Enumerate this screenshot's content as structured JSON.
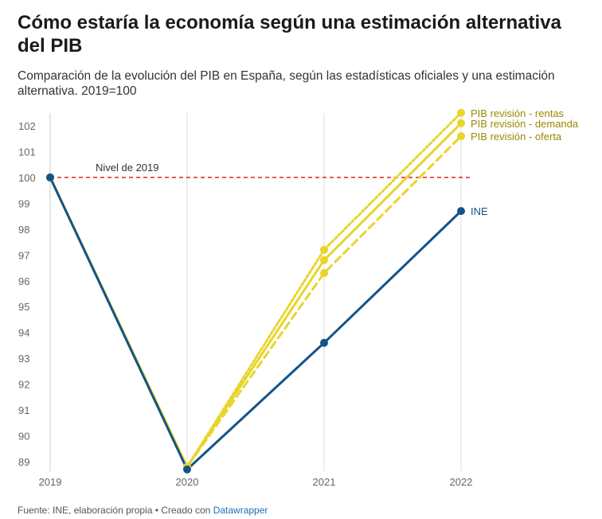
{
  "title": "Cómo estaría la economía según una estimación alternativa del PIB",
  "subtitle": "Comparación de la evolución del PIB en España, según las estadísticas oficiales y una estimación alternativa. 2019=100",
  "footer": {
    "source": "Fuente: INE, elaboración propia • Creado con ",
    "brand": "Datawrapper"
  },
  "chart_data": {
    "type": "line",
    "x": [
      "2019",
      "2020",
      "2021",
      "2022"
    ],
    "ylim": [
      89,
      102.5
    ],
    "yticks": [
      89,
      90,
      91,
      92,
      93,
      94,
      95,
      96,
      97,
      98,
      99,
      100,
      101,
      102
    ],
    "grid": "vertical",
    "reference_line": {
      "value": 100,
      "label": "Nivel de 2019",
      "color": "#e0201b"
    },
    "series": [
      {
        "name": "PIB revisión - rentas",
        "color": "#e8d52a",
        "label_color": "#9a8a00",
        "style": "dotted",
        "values": [
          100,
          88.8,
          97.2,
          102.5
        ]
      },
      {
        "name": "PIB revisión - demanda",
        "color": "#e8d52a",
        "label_color": "#9a8a00",
        "style": "solid",
        "values": [
          100,
          88.8,
          96.8,
          102.1
        ]
      },
      {
        "name": "PIB revisión - oferta",
        "color": "#e8d52a",
        "label_color": "#9a8a00",
        "style": "dashed",
        "values": [
          100,
          88.8,
          96.3,
          101.6
        ]
      },
      {
        "name": "INE",
        "color": "#13538a",
        "label_color": "#13538a",
        "style": "solid",
        "values": [
          100,
          88.7,
          93.6,
          98.7
        ]
      }
    ]
  }
}
